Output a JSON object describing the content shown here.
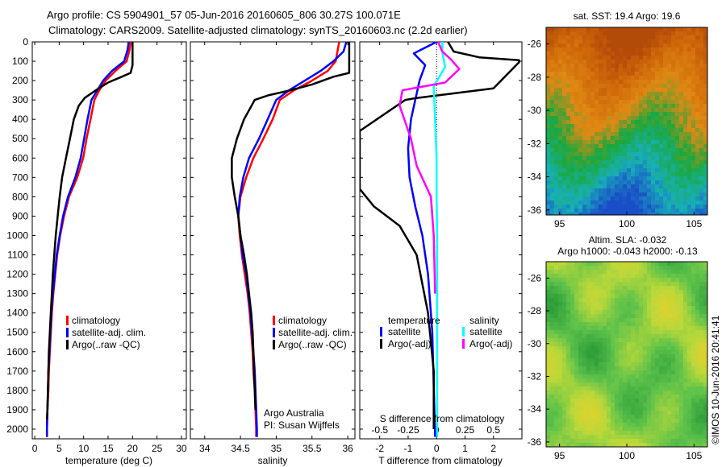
{
  "title_line1": "Argo profile: CS 5904901_57 05-Jun-2016 20160605_806 30.27S 100.071E",
  "title_line2": "Climatology: CARS2009. Satellite-adjusted climatology: synTS_20160603.nc (2.2d earlier)",
  "credit": "Argo Australia",
  "pi": "PI: Susan Wijffels",
  "footer_stamp": "©IMOS 10-Jun-2016 20:41:41",
  "colors": {
    "climatology": "#ff0000",
    "satellite": "#0000ff",
    "argo": "#000000",
    "sal_satellite": "#00ffff",
    "sal_argo": "#ff00ff"
  },
  "chart_data": [
    {
      "id": "temperature",
      "type": "line",
      "xlabel": "temperature (deg C)",
      "ylabel": "",
      "xlim": [
        -0.5,
        31
      ],
      "ylim": [
        2050,
        0
      ],
      "xticks": [
        0,
        5,
        10,
        15,
        20,
        25,
        30
      ],
      "yticks": [
        0,
        100,
        200,
        300,
        400,
        500,
        600,
        700,
        800,
        900,
        1000,
        1100,
        1200,
        1300,
        1400,
        1500,
        1600,
        1700,
        1800,
        1900,
        2000
      ],
      "legend": [
        "climatology",
        "satellite-adj. clim.",
        "Argo(..raw -QC)"
      ],
      "series": [
        {
          "name": "climatology",
          "color": "#ff0000",
          "points": [
            [
              19.6,
              0
            ],
            [
              19.4,
              40
            ],
            [
              18.8,
              100
            ],
            [
              16.5,
              150
            ],
            [
              14.5,
              200
            ],
            [
              13.2,
              250
            ],
            [
              12.2,
              300
            ],
            [
              11.4,
              400
            ],
            [
              10.6,
              500
            ],
            [
              9.9,
              600
            ],
            [
              8.7,
              700
            ],
            [
              7.0,
              800
            ],
            [
              6.0,
              900
            ],
            [
              5.2,
              1000
            ],
            [
              4.6,
              1100
            ],
            [
              4.2,
              1200
            ],
            [
              3.8,
              1300
            ],
            [
              3.5,
              1400
            ],
            [
              3.3,
              1500
            ],
            [
              3.1,
              1600
            ],
            [
              2.9,
              1700
            ],
            [
              2.8,
              1800
            ],
            [
              2.6,
              1900
            ],
            [
              2.5,
              2000
            ],
            [
              2.5,
              2040
            ]
          ]
        },
        {
          "name": "satellite-adj. clim.",
          "color": "#0000ff",
          "points": [
            [
              19.2,
              0
            ],
            [
              19.0,
              40
            ],
            [
              18.3,
              100
            ],
            [
              15.8,
              150
            ],
            [
              14.0,
              200
            ],
            [
              12.8,
              250
            ],
            [
              11.6,
              300
            ],
            [
              10.8,
              400
            ],
            [
              10.1,
              500
            ],
            [
              9.4,
              600
            ],
            [
              8.3,
              700
            ],
            [
              6.8,
              800
            ],
            [
              5.8,
              900
            ],
            [
              5.1,
              1000
            ],
            [
              4.5,
              1100
            ],
            [
              4.1,
              1200
            ],
            [
              3.7,
              1300
            ],
            [
              3.4,
              1400
            ],
            [
              3.2,
              1500
            ],
            [
              3.0,
              1600
            ],
            [
              2.8,
              1700
            ],
            [
              2.7,
              1800
            ],
            [
              2.6,
              1900
            ],
            [
              2.5,
              2000
            ],
            [
              2.5,
              2040
            ]
          ]
        },
        {
          "name": "Argo(..raw -QC)",
          "color": "#000000",
          "points": [
            [
              20.0,
              0
            ],
            [
              20.0,
              120
            ],
            [
              19.6,
              160
            ],
            [
              17.8,
              180
            ],
            [
              15.0,
              210
            ],
            [
              12.5,
              250
            ],
            [
              10.2,
              290
            ],
            [
              9.0,
              330
            ],
            [
              8.0,
              400
            ],
            [
              7.2,
              500
            ],
            [
              6.4,
              600
            ],
            [
              5.6,
              700
            ],
            [
              5.1,
              800
            ],
            [
              4.7,
              900
            ],
            [
              4.3,
              1000
            ],
            [
              4.0,
              1100
            ],
            [
              3.7,
              1200
            ],
            [
              3.5,
              1300
            ],
            [
              3.3,
              1400
            ],
            [
              3.1,
              1500
            ],
            [
              2.9,
              1600
            ],
            [
              2.8,
              1700
            ],
            [
              2.7,
              1800
            ],
            [
              2.6,
              1900
            ],
            [
              2.5,
              1950
            ]
          ]
        }
      ]
    },
    {
      "id": "salinity",
      "type": "line",
      "xlabel": "salinity",
      "ylabel": "",
      "xlim": [
        33.8,
        36.1
      ],
      "ylim": [
        2050,
        0
      ],
      "xticks": [
        34,
        34.5,
        35,
        35.5,
        36
      ],
      "xtick_labels": [
        "34",
        "34.5",
        "35",
        "35.5",
        "36"
      ],
      "legend": [
        "climatology",
        "satellite-adj. clim.",
        "Argo(..raw -QC)"
      ],
      "series": [
        {
          "name": "climatology",
          "color": "#ff0000",
          "points": [
            [
              35.88,
              0
            ],
            [
              35.83,
              100
            ],
            [
              35.72,
              150
            ],
            [
              35.5,
              200
            ],
            [
              35.25,
              250
            ],
            [
              35.05,
              300
            ],
            [
              34.95,
              400
            ],
            [
              34.82,
              500
            ],
            [
              34.68,
              600
            ],
            [
              34.58,
              700
            ],
            [
              34.5,
              800
            ],
            [
              34.47,
              900
            ],
            [
              34.49,
              1000
            ],
            [
              34.52,
              1100
            ],
            [
              34.56,
              1200
            ],
            [
              34.6,
              1300
            ],
            [
              34.63,
              1400
            ],
            [
              34.65,
              1500
            ],
            [
              34.67,
              1600
            ],
            [
              34.68,
              1700
            ],
            [
              34.7,
              1800
            ],
            [
              34.71,
              1900
            ],
            [
              34.72,
              2000
            ],
            [
              34.72,
              2040
            ]
          ]
        },
        {
          "name": "satellite-adj. clim.",
          "color": "#0000ff",
          "points": [
            [
              35.98,
              0
            ],
            [
              35.94,
              50
            ],
            [
              35.8,
              100
            ],
            [
              35.62,
              150
            ],
            [
              35.4,
              200
            ],
            [
              35.18,
              250
            ],
            [
              35.0,
              300
            ],
            [
              34.88,
              400
            ],
            [
              34.76,
              500
            ],
            [
              34.62,
              600
            ],
            [
              34.54,
              700
            ],
            [
              34.49,
              800
            ],
            [
              34.47,
              900
            ],
            [
              34.5,
              1000
            ],
            [
              34.53,
              1100
            ],
            [
              34.58,
              1200
            ],
            [
              34.61,
              1300
            ],
            [
              34.64,
              1400
            ],
            [
              34.66,
              1500
            ],
            [
              34.68,
              1600
            ],
            [
              34.7,
              1700
            ],
            [
              34.71,
              1800
            ],
            [
              34.72,
              1900
            ],
            [
              34.73,
              2000
            ],
            [
              34.73,
              2040
            ]
          ]
        },
        {
          "name": "Argo(..raw -QC)",
          "color": "#000000",
          "points": [
            [
              36.02,
              0
            ],
            [
              36.02,
              160
            ],
            [
              35.8,
              180
            ],
            [
              35.5,
              220
            ],
            [
              35.2,
              250
            ],
            [
              34.9,
              275
            ],
            [
              34.7,
              300
            ],
            [
              34.55,
              400
            ],
            [
              34.45,
              500
            ],
            [
              34.38,
              600
            ],
            [
              34.38,
              700
            ],
            [
              34.42,
              800
            ],
            [
              34.47,
              900
            ],
            [
              34.5,
              1000
            ],
            [
              34.55,
              1100
            ],
            [
              34.59,
              1200
            ],
            [
              34.62,
              1300
            ],
            [
              34.65,
              1400
            ],
            [
              34.67,
              1500
            ],
            [
              34.68,
              1600
            ],
            [
              34.69,
              1700
            ],
            [
              34.7,
              1800
            ],
            [
              34.71,
              1900
            ]
          ]
        }
      ]
    },
    {
      "id": "difference",
      "type": "line",
      "xlabel": "T difference from climatology",
      "x2label": "S difference from climatology",
      "ylabel": "",
      "xlim": [
        -2.7,
        3.0
      ],
      "ylim": [
        2050,
        0
      ],
      "xticks": [
        -2,
        -1,
        0,
        1,
        2
      ],
      "x2ticks": [
        -0.5,
        -0.25,
        0,
        0.25,
        0.5
      ],
      "x2tick_labels": [
        "-0.5",
        "-0.25",
        "0",
        "0.25",
        "0.5"
      ],
      "legend_groups": [
        {
          "title": "temperature",
          "items": [
            "satellite",
            "Argo(-adj)"
          ]
        },
        {
          "title": "salinity",
          "items": [
            "satellite",
            "Argo(-adj)"
          ]
        }
      ],
      "series": [
        {
          "name": "temperature satellite",
          "color": "#0000ff",
          "points": [
            [
              0.0,
              0
            ],
            [
              -0.8,
              60
            ],
            [
              -0.4,
              120
            ],
            [
              -0.6,
              200
            ],
            [
              -0.9,
              400
            ],
            [
              -1.0,
              550
            ],
            [
              -0.95,
              700
            ],
            [
              -0.75,
              850
            ],
            [
              -0.5,
              1000
            ],
            [
              -0.3,
              1200
            ],
            [
              -0.15,
              1500
            ],
            [
              -0.05,
              2040
            ]
          ]
        },
        {
          "name": "temperature Argo(-adj)",
          "color": "#000000",
          "points": [
            [
              0.4,
              0
            ],
            [
              0.6,
              50
            ],
            [
              1.5,
              80
            ],
            [
              2.9,
              95
            ],
            [
              2.9,
              105
            ],
            [
              2.0,
              240
            ],
            [
              -0.7,
              290
            ],
            [
              -1.1,
              300
            ],
            [
              -2.7,
              460
            ],
            [
              -2.7,
              760
            ],
            [
              -2.2,
              850
            ],
            [
              -1.3,
              950
            ],
            [
              -0.7,
              1100
            ],
            [
              -0.3,
              1400
            ],
            [
              -0.1,
              1700
            ],
            [
              -0.1,
              2000
            ]
          ]
        },
        {
          "name": "salinity satellite",
          "color": "#00ffff",
          "points": [
            [
              0.2,
              0
            ],
            [
              0.2,
              50
            ],
            [
              0.3,
              130
            ],
            [
              -0.1,
              230
            ],
            [
              -0.05,
              400
            ],
            [
              0.0,
              600
            ],
            [
              0.0,
              800
            ],
            [
              0.02,
              1000
            ],
            [
              0.02,
              1500
            ],
            [
              0.02,
              2040
            ]
          ]
        },
        {
          "name": "salinity Argo(-adj)",
          "color": "#ff00ff",
          "points": [
            [
              0.05,
              0
            ],
            [
              0.2,
              50
            ],
            [
              0.5,
              90
            ],
            [
              0.8,
              140
            ],
            [
              0.3,
              210
            ],
            [
              -1.2,
              250
            ],
            [
              -1.3,
              330
            ],
            [
              -0.9,
              500
            ],
            [
              -0.7,
              640
            ],
            [
              -0.2,
              800
            ],
            [
              -0.1,
              1000
            ],
            [
              -0.05,
              1300
            ]
          ]
        }
      ]
    },
    {
      "id": "sst_map",
      "type": "heatmap",
      "title": "sat. SST: 19.4  Argo: 19.6",
      "xlim": [
        94,
        106
      ],
      "ylim": [
        -36.3,
        -25
      ],
      "xticks": [
        95,
        100,
        105
      ],
      "yticks": [
        -26,
        -28,
        -30,
        -32,
        -34,
        -36
      ],
      "colors_north_to_south": [
        "#b24a08",
        "#d06a0a",
        "#e08a14",
        "#1aa83c",
        "#18b0b8",
        "#1a4ec8"
      ]
    },
    {
      "id": "sla_map",
      "type": "heatmap",
      "title": "Altim. SLA: -0.032",
      "subtitle": "Argo h1000: -0.043 h2000: -0.13",
      "xlim": [
        94,
        106
      ],
      "ylim": [
        -36.3,
        -25
      ],
      "xticks": [
        95,
        100,
        105
      ],
      "yticks": [
        -26,
        -28,
        -30,
        -32,
        -34,
        -36
      ],
      "colors": [
        "#2e9e3a",
        "#5dc24a",
        "#b8d83a",
        "#e8d02a"
      ]
    }
  ]
}
